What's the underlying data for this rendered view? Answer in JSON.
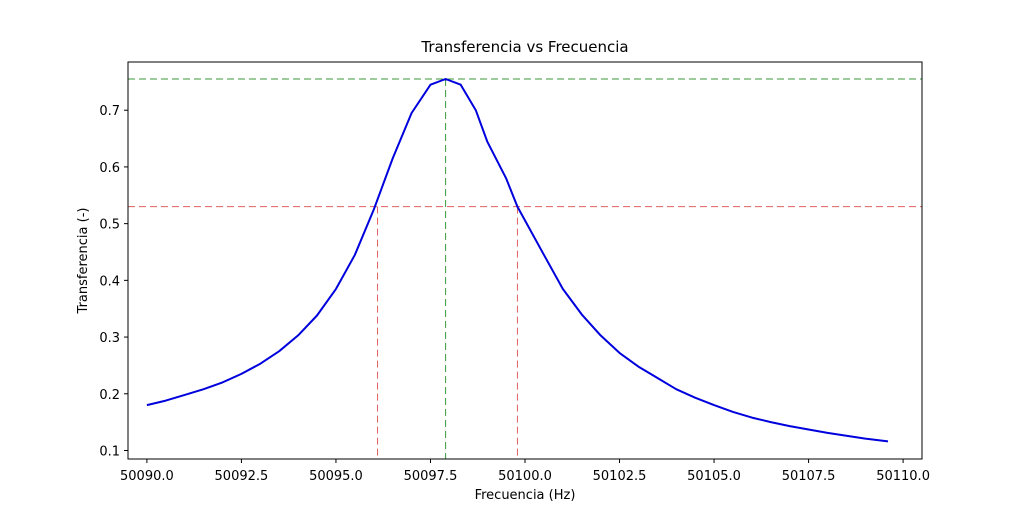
{
  "chart_data": {
    "type": "line",
    "title": "Transferencia vs Frecuencia",
    "xlabel": "Frecuencia (Hz)",
    "ylabel": "Transferencia (-)",
    "xlim": [
      50089.5,
      50110.5
    ],
    "ylim": [
      0.085,
      0.785
    ],
    "xticks": [
      50090.0,
      50092.5,
      50095.0,
      50097.5,
      50100.0,
      50102.5,
      50105.0,
      50107.5,
      50110.0
    ],
    "xtick_labels": [
      "50090.0",
      "50092.5",
      "50095.0",
      "50097.5",
      "50100.0",
      "50102.5",
      "50105.0",
      "50107.5",
      "50110.0"
    ],
    "yticks": [
      0.1,
      0.2,
      0.3,
      0.4,
      0.5,
      0.6,
      0.7
    ],
    "ytick_labels": [
      "0.1",
      "0.2",
      "0.3",
      "0.4",
      "0.5",
      "0.6",
      "0.7"
    ],
    "grid": false,
    "series": [
      {
        "color": "#0000dd",
        "x": [
          50090.0,
          50090.5,
          50091.0,
          50091.5,
          50092.0,
          50092.5,
          50093.0,
          50093.5,
          50094.0,
          50094.5,
          50095.0,
          50095.5,
          50096.0,
          50096.5,
          50097.0,
          50097.5,
          50097.9,
          50098.3,
          50098.7,
          50099.0,
          50099.5,
          50099.8,
          50100.5,
          50101.0,
          50101.5,
          50102.0,
          50102.5,
          50103.0,
          50103.5,
          50104.0,
          50104.5,
          50105.0,
          50105.5,
          50106.0,
          50106.5,
          50107.0,
          50107.5,
          50108.0,
          50108.5,
          50109.0,
          50109.6
        ],
        "y": [
          0.18,
          0.188,
          0.198,
          0.208,
          0.22,
          0.235,
          0.253,
          0.275,
          0.303,
          0.338,
          0.385,
          0.445,
          0.525,
          0.615,
          0.695,
          0.745,
          0.755,
          0.745,
          0.7,
          0.645,
          0.58,
          0.53,
          0.445,
          0.385,
          0.34,
          0.303,
          0.272,
          0.248,
          0.228,
          0.208,
          0.193,
          0.18,
          0.168,
          0.158,
          0.15,
          0.143,
          0.137,
          0.131,
          0.126,
          0.121,
          0.116
        ]
      }
    ],
    "reference_lines": [
      {
        "orientation": "horizontal",
        "value": 0.755,
        "color": "#3a9a3a"
      },
      {
        "orientation": "vertical",
        "value": 50097.9,
        "from": 0.085,
        "to": 0.755,
        "color": "#3a9a3a"
      },
      {
        "orientation": "horizontal",
        "value": 0.53,
        "color": "#e06060"
      },
      {
        "orientation": "vertical",
        "value": 50096.1,
        "from": 0.085,
        "to": 0.53,
        "color": "#e06060"
      },
      {
        "orientation": "vertical",
        "value": 50099.8,
        "from": 0.085,
        "to": 0.53,
        "color": "#e06060"
      }
    ]
  }
}
